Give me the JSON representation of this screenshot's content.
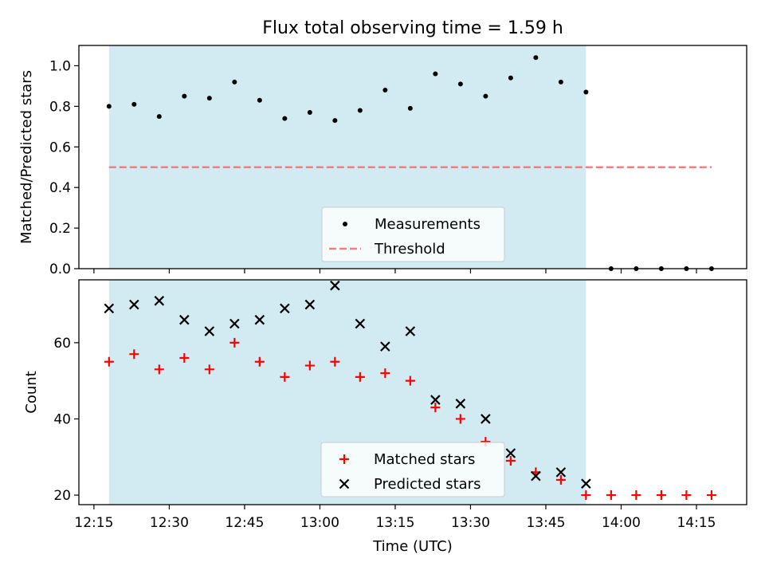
{
  "title": "Flux total observing time = 1.59 h",
  "xlabel": "Time (UTC)",
  "x_ticks": [
    "12:15",
    "12:30",
    "12:45",
    "13:00",
    "13:15",
    "13:30",
    "13:45",
    "14:00",
    "14:15"
  ],
  "colors": {
    "shade": "#add8e6",
    "threshold": "#f08080",
    "matched": "#ff0000",
    "predicted": "#000000"
  },
  "chart_data": [
    {
      "type": "scatter",
      "ylabel": "Matched/Predicted stars",
      "xlim": [
        "12:12",
        "14:25"
      ],
      "ylim": [
        0,
        1.1
      ],
      "y_ticks": [
        "0.0",
        "0.2",
        "0.4",
        "0.6",
        "0.8",
        "1.0"
      ],
      "shaded_span": [
        "12:18",
        "13:53"
      ],
      "threshold_line": {
        "y": 0.5,
        "x_range": [
          "12:18",
          "14:18"
        ]
      },
      "legend_position": "lower center",
      "series": [
        {
          "name": "Measurements",
          "marker": "dot",
          "x": [
            "12:18",
            "12:23",
            "12:28",
            "12:33",
            "12:38",
            "12:43",
            "12:48",
            "12:53",
            "12:58",
            "13:03",
            "13:08",
            "13:13",
            "13:18",
            "13:23",
            "13:28",
            "13:33",
            "13:38",
            "13:43",
            "13:48",
            "13:53",
            "13:58",
            "14:03",
            "14:08",
            "14:13",
            "14:18"
          ],
          "y": [
            0.8,
            0.81,
            0.75,
            0.85,
            0.84,
            0.92,
            0.83,
            0.74,
            0.77,
            0.73,
            0.78,
            0.88,
            0.79,
            0.96,
            0.91,
            0.85,
            0.94,
            1.04,
            0.92,
            0.87,
            0,
            0,
            0,
            0,
            0
          ]
        },
        {
          "name": "Threshold",
          "marker": "dashed-line"
        }
      ]
    },
    {
      "type": "scatter",
      "ylabel": "Count",
      "xlim": [
        "12:12",
        "14:25"
      ],
      "ylim": [
        17.5,
        76.5
      ],
      "y_ticks": [
        "20",
        "40",
        "60"
      ],
      "shaded_span": [
        "12:18",
        "13:53"
      ],
      "legend_position": "lower center",
      "series": [
        {
          "name": "Matched stars",
          "marker": "plus",
          "x": [
            "12:18",
            "12:23",
            "12:28",
            "12:33",
            "12:38",
            "12:43",
            "12:48",
            "12:53",
            "12:58",
            "13:03",
            "13:08",
            "13:13",
            "13:18",
            "13:23",
            "13:28",
            "13:33",
            "13:38",
            "13:43",
            "13:48",
            "13:53",
            "13:58",
            "14:03",
            "14:08",
            "14:13",
            "14:18"
          ],
          "y": [
            55,
            57,
            53,
            56,
            53,
            60,
            55,
            51,
            54,
            55,
            51,
            52,
            50,
            43,
            40,
            34,
            29,
            26,
            24,
            20,
            20,
            20,
            20,
            20,
            20
          ]
        },
        {
          "name": "Predicted stars",
          "marker": "x",
          "x": [
            "12:18",
            "12:23",
            "12:28",
            "12:33",
            "12:38",
            "12:43",
            "12:48",
            "12:53",
            "12:58",
            "13:03",
            "13:08",
            "13:13",
            "13:18",
            "13:23",
            "13:28",
            "13:33",
            "13:38",
            "13:43",
            "13:48",
            "13:53"
          ],
          "y": [
            69,
            70,
            71,
            66,
            63,
            65,
            66,
            69,
            70,
            75,
            65,
            59,
            63,
            45,
            44,
            40,
            31,
            25,
            26,
            23
          ]
        }
      ]
    }
  ]
}
